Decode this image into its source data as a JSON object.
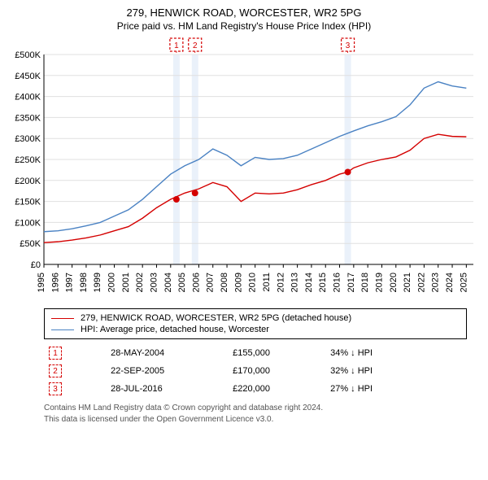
{
  "title": "279, HENWICK ROAD, WORCESTER, WR2 5PG",
  "subtitle": "Price paid vs. HM Land Registry's House Price Index (HPI)",
  "chart": {
    "type": "line",
    "background_color": "#ffffff",
    "grid_color": "#e0e0e0",
    "axis_color": "#000000",
    "label_fontsize": 11,
    "xlim": [
      1995,
      2025.5
    ],
    "ylim": [
      0,
      500000
    ],
    "ytick_step": 50000,
    "yticks": [
      "£0",
      "£50K",
      "£100K",
      "£150K",
      "£200K",
      "£250K",
      "£300K",
      "£350K",
      "£400K",
      "£450K",
      "£500K"
    ],
    "xticks": [
      1995,
      1996,
      1997,
      1998,
      1999,
      2000,
      2001,
      2002,
      2003,
      2004,
      2005,
      2006,
      2007,
      2008,
      2009,
      2010,
      2011,
      2012,
      2013,
      2014,
      2015,
      2016,
      2017,
      2018,
      2019,
      2020,
      2021,
      2022,
      2023,
      2024,
      2025
    ],
    "line_width": 1.4,
    "series": [
      {
        "name": "hpi",
        "label": "HPI: Average price, detached house, Worcester",
        "color": "#4a82c3",
        "points": [
          [
            1995,
            78000
          ],
          [
            1996,
            80000
          ],
          [
            1997,
            85000
          ],
          [
            1998,
            92000
          ],
          [
            1999,
            100000
          ],
          [
            2000,
            115000
          ],
          [
            2001,
            130000
          ],
          [
            2002,
            155000
          ],
          [
            2003,
            185000
          ],
          [
            2004,
            215000
          ],
          [
            2005,
            235000
          ],
          [
            2006,
            250000
          ],
          [
            2007,
            275000
          ],
          [
            2008,
            260000
          ],
          [
            2009,
            235000
          ],
          [
            2010,
            255000
          ],
          [
            2011,
            250000
          ],
          [
            2012,
            252000
          ],
          [
            2013,
            260000
          ],
          [
            2014,
            275000
          ],
          [
            2015,
            290000
          ],
          [
            2016,
            305000
          ],
          [
            2017,
            318000
          ],
          [
            2018,
            330000
          ],
          [
            2019,
            340000
          ],
          [
            2020,
            352000
          ],
          [
            2021,
            380000
          ],
          [
            2022,
            420000
          ],
          [
            2023,
            435000
          ],
          [
            2024,
            425000
          ],
          [
            2025,
            420000
          ]
        ]
      },
      {
        "name": "property",
        "label": "279, HENWICK ROAD, WORCESTER, WR2 5PG (detached house)",
        "color": "#d40000",
        "points": [
          [
            1995,
            52000
          ],
          [
            1996,
            54000
          ],
          [
            1997,
            58000
          ],
          [
            1998,
            63000
          ],
          [
            1999,
            70000
          ],
          [
            2000,
            80000
          ],
          [
            2001,
            90000
          ],
          [
            2002,
            110000
          ],
          [
            2003,
            135000
          ],
          [
            2004,
            155000
          ],
          [
            2005,
            170000
          ],
          [
            2006,
            180000
          ],
          [
            2007,
            195000
          ],
          [
            2008,
            185000
          ],
          [
            2009,
            150000
          ],
          [
            2010,
            170000
          ],
          [
            2011,
            168000
          ],
          [
            2012,
            170000
          ],
          [
            2013,
            178000
          ],
          [
            2014,
            190000
          ],
          [
            2015,
            200000
          ],
          [
            2016,
            215000
          ],
          [
            2016.58,
            220000
          ],
          [
            2017,
            230000
          ],
          [
            2018,
            242000
          ],
          [
            2019,
            250000
          ],
          [
            2020,
            256000
          ],
          [
            2021,
            272000
          ],
          [
            2022,
            300000
          ],
          [
            2023,
            310000
          ],
          [
            2024,
            305000
          ],
          [
            2025,
            304000
          ]
        ]
      }
    ],
    "sale_markers": [
      {
        "n": "1",
        "x": 2004.41,
        "price": 155000,
        "band_color": "#e6eef8"
      },
      {
        "n": "2",
        "x": 2005.73,
        "price": 170000,
        "band_color": "#e6eef8"
      },
      {
        "n": "3",
        "x": 2016.58,
        "price": 220000,
        "band_color": "#e6eef8"
      }
    ],
    "marker_border_color": "#d40000",
    "marker_text_color": "#d40000",
    "vband_color": "#eaf1fa"
  },
  "legend": {
    "items": [
      {
        "color": "#d40000",
        "label": "279, HENWICK ROAD, WORCESTER, WR2 5PG (detached house)"
      },
      {
        "color": "#4a82c3",
        "label": "HPI: Average price, detached house, Worcester"
      }
    ]
  },
  "sales": [
    {
      "n": "1",
      "date": "28-MAY-2004",
      "price": "£155,000",
      "delta": "34% ↓ HPI"
    },
    {
      "n": "2",
      "date": "22-SEP-2005",
      "price": "£170,000",
      "delta": "32% ↓ HPI"
    },
    {
      "n": "3",
      "date": "28-JUL-2016",
      "price": "£220,000",
      "delta": "27% ↓ HPI"
    }
  ],
  "footer_line1": "Contains HM Land Registry data © Crown copyright and database right 2024.",
  "footer_line2": "This data is licensed under the Open Government Licence v3.0."
}
